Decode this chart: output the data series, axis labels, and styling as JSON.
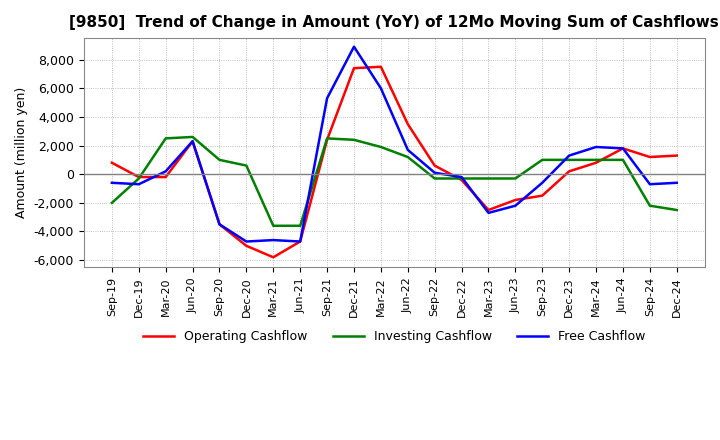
{
  "title": "[9850]  Trend of Change in Amount (YoY) of 12Mo Moving Sum of Cashflows",
  "ylabel": "Amount (million yen)",
  "ylim": [
    -6500,
    9500
  ],
  "yticks": [
    -6000,
    -4000,
    -2000,
    0,
    2000,
    4000,
    6000,
    8000
  ],
  "x_labels": [
    "Sep-19",
    "Dec-19",
    "Mar-20",
    "Jun-20",
    "Sep-20",
    "Dec-20",
    "Mar-21",
    "Jun-21",
    "Sep-21",
    "Dec-21",
    "Mar-22",
    "Jun-22",
    "Sep-22",
    "Dec-22",
    "Mar-23",
    "Jun-23",
    "Sep-23",
    "Dec-23",
    "Mar-24",
    "Jun-24",
    "Sep-24",
    "Dec-24"
  ],
  "operating": [
    800,
    -200,
    -200,
    2300,
    -3500,
    -5000,
    -5800,
    -4700,
    2400,
    7400,
    7500,
    3500,
    600,
    -400,
    -2500,
    -1800,
    -1500,
    200,
    800,
    1800,
    1200,
    1300
  ],
  "investing": [
    -2000,
    -300,
    2500,
    2600,
    1000,
    600,
    -3600,
    -3600,
    2500,
    2400,
    1900,
    1200,
    -300,
    -300,
    -300,
    -300,
    1000,
    1000,
    1000,
    1000,
    -2200,
    -2500
  ],
  "free": [
    -600,
    -700,
    200,
    2300,
    -3500,
    -4700,
    -4600,
    -4700,
    5300,
    8900,
    6000,
    1700,
    100,
    -200,
    -2700,
    -2200,
    -600,
    1300,
    1900,
    1800,
    -700,
    -600
  ],
  "operating_color": "#ff0000",
  "investing_color": "#008000",
  "free_color": "#0000ff",
  "bg_color": "#ffffff",
  "grid_color": "#aaaaaa",
  "zero_line_color": "#808080"
}
